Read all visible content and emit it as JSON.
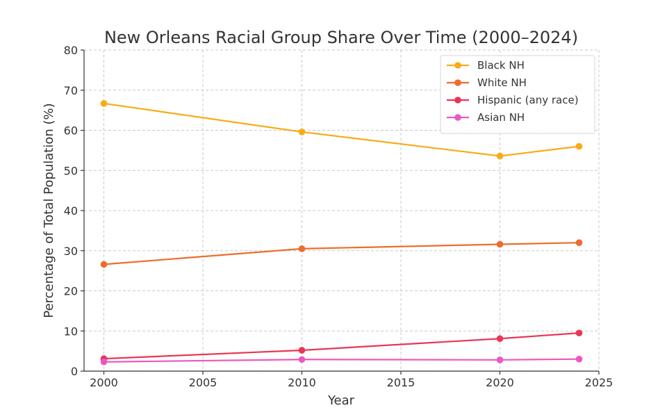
{
  "chart_data": {
    "type": "line",
    "title": "New Orleans Racial Group Share Over Time (2000–2024)",
    "xlabel": "Year",
    "ylabel": "Percentage of Total Population (%)",
    "xlim": [
      1999,
      2025
    ],
    "ylim": [
      0,
      80
    ],
    "xticks": [
      2000,
      2005,
      2010,
      2015,
      2020,
      2025
    ],
    "yticks": [
      0,
      10,
      20,
      30,
      40,
      50,
      60,
      70,
      80
    ],
    "grid": true,
    "legend_position": "top-right",
    "x": [
      2000,
      2010,
      2020,
      2024
    ],
    "series": [
      {
        "name": "Black NH",
        "color": "#F9AB16",
        "values": [
          66.7,
          59.6,
          53.6,
          56.0
        ]
      },
      {
        "name": "White NH",
        "color": "#EE6C2C",
        "values": [
          26.6,
          30.5,
          31.6,
          32.0
        ]
      },
      {
        "name": "Hispanic (any race)",
        "color": "#E93656",
        "values": [
          3.1,
          5.2,
          8.1,
          9.5
        ]
      },
      {
        "name": "Asian NH",
        "color": "#EC58C1",
        "values": [
          2.3,
          2.9,
          2.8,
          3.0
        ]
      }
    ]
  }
}
